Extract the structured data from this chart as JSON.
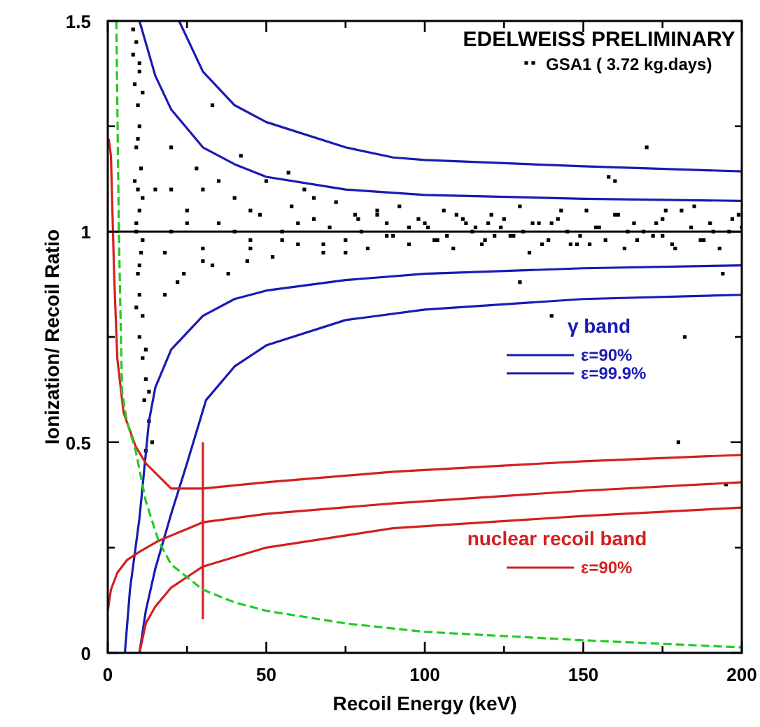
{
  "chart_data": {
    "type": "scatter",
    "title": "EDELWEISS PRELIMINARY",
    "xlabel": "Recoil Energy (keV)",
    "ylabel": "Ionization/ Recoil Ratio",
    "xlim": [
      0,
      200
    ],
    "ylim": [
      0,
      1.5
    ],
    "xticks": [
      0,
      {
        "value": 25,
        "label": null
      },
      50,
      {
        "value": 75,
        "label": null
      },
      100,
      {
        "value": 125,
        "label": null
      },
      150,
      {
        "value": 175,
        "label": null
      },
      200
    ],
    "yticks": [
      0,
      {
        "value": 0.25,
        "label": null
      },
      0.5,
      {
        "value": 0.75,
        "label": null
      },
      1,
      {
        "value": 1.25,
        "label": null
      },
      1.5
    ],
    "grid": false,
    "legend": "right",
    "ref_lines": [
      {
        "axis": "y",
        "value": 1,
        "color": "#000000"
      }
    ],
    "annotations": [
      "γ band",
      "nuclear recoil band"
    ],
    "series": [
      {
        "name": "GSA1 ( 3.72 kg.days)",
        "marker": "square",
        "color": "#000000",
        "x": [
          8,
          9,
          10,
          8.5,
          9.5,
          10,
          9,
          10.5,
          9.5,
          10,
          9,
          10.5,
          9.5,
          10,
          11,
          10,
          11,
          12,
          11.5,
          13,
          14,
          12,
          11,
          8.5,
          11,
          9,
          10,
          9.5,
          11,
          12,
          10,
          8,
          9,
          13,
          15,
          18,
          20,
          22,
          25,
          28,
          30,
          33,
          35,
          38,
          40,
          42,
          45,
          48,
          50,
          52,
          55,
          58,
          60,
          62,
          65,
          68,
          70,
          72,
          75,
          78,
          80,
          82,
          85,
          88,
          90,
          92,
          95,
          98,
          20,
          25,
          30,
          35,
          40,
          45,
          55,
          60,
          65,
          75,
          85,
          95,
          18,
          24,
          33,
          44,
          57,
          68,
          79,
          88,
          100,
          103,
          106,
          109,
          112,
          115,
          118,
          121,
          124,
          127,
          130,
          133,
          136,
          139,
          142,
          145,
          148,
          151,
          154,
          157,
          160,
          163,
          166,
          169,
          172,
          175,
          178,
          181,
          184,
          187,
          190,
          193,
          196,
          199,
          101,
          107,
          113,
          119,
          125,
          131,
          137,
          143,
          149,
          155,
          161,
          167,
          173,
          179,
          185,
          191,
          197,
          104,
          116,
          128,
          140,
          152,
          164,
          176,
          188,
          200,
          110,
          122,
          134,
          146,
          158,
          170,
          182,
          194,
          130,
          180,
          195,
          140,
          160,
          30,
          20,
          45,
          120,
          175
        ],
        "values": [
          1.48,
          1.45,
          1.4,
          1.35,
          1.3,
          1.25,
          1.2,
          1.15,
          1.1,
          1.05,
          1.0,
          0.95,
          0.9,
          0.85,
          0.8,
          0.75,
          0.7,
          0.65,
          0.6,
          0.55,
          0.5,
          0.48,
          1.33,
          1.12,
          0.98,
          0.82,
          1.38,
          1.22,
          1.08,
          0.72,
          0.92,
          1.42,
          1.02,
          0.62,
          1.1,
          0.95,
          1.2,
          0.88,
          1.05,
          1.15,
          0.93,
          1.3,
          1.02,
          0.9,
          1.08,
          1.18,
          0.96,
          1.04,
          1.12,
          0.94,
          1.0,
          1.06,
          0.97,
          1.1,
          1.03,
          0.95,
          1.01,
          1.07,
          0.98,
          1.04,
          1.0,
          0.96,
          1.05,
          1.02,
          0.99,
          1.06,
          0.97,
          1.03,
          1.1,
          1.02,
          0.96,
          1.12,
          1.0,
          1.05,
          0.98,
          1.02,
          1.08,
          0.95,
          1.04,
          1.01,
          0.85,
          0.9,
          0.92,
          0.93,
          1.14,
          0.97,
          1.03,
          0.99,
          1.02,
          0.98,
          1.05,
          0.96,
          1.03,
          1.0,
          0.97,
          1.04,
          1.01,
          0.99,
          1.06,
          0.95,
          1.02,
          0.98,
          1.03,
          1.0,
          0.97,
          1.05,
          1.01,
          0.98,
          1.04,
          0.96,
          1.02,
          1.0,
          0.99,
          1.03,
          0.97,
          1.05,
          1.01,
          0.98,
          1.02,
          0.96,
          1.0,
          1.04,
          1.01,
          0.99,
          1.02,
          0.98,
          1.03,
          1.0,
          0.97,
          1.05,
          0.99,
          1.01,
          1.04,
          0.98,
          1.02,
          0.96,
          1.06,
          1.0,
          1.03,
          0.98,
          1.01,
          0.99,
          1.02,
          0.97,
          1.0,
          1.05,
          0.98,
          1.01,
          1.04,
          0.99,
          1.02,
          0.97,
          1.13,
          1.2,
          0.75,
          0.9,
          0.88,
          0.5,
          0.4,
          0.8,
          1.12,
          1.1,
          1.0,
          0.98,
          1.02,
          0.99
        ]
      },
      {
        "name": "ε=90%",
        "type": "line",
        "color": "#1a1ab4",
        "x": [
          10,
          15,
          20,
          30,
          40,
          50,
          75,
          100,
          150,
          200
        ],
        "values": [
          1.5,
          1.37,
          1.29,
          1.2,
          1.16,
          1.13,
          1.1,
          1.087,
          1.078,
          1.073
        ]
      },
      {
        "type": "line",
        "color": "#1a1ab4",
        "x": [
          5.4,
          7,
          10,
          13,
          15,
          20,
          30,
          40,
          50,
          75,
          100,
          150,
          200
        ],
        "values": [
          0,
          0.15,
          0.32,
          0.55,
          0.63,
          0.72,
          0.8,
          0.84,
          0.86,
          0.885,
          0.9,
          0.913,
          0.92
        ]
      },
      {
        "name": "ε=99.9%",
        "type": "line",
        "color": "#1a1ab4",
        "x": [
          22.5,
          30,
          40,
          50,
          75,
          90,
          100,
          150,
          200
        ],
        "values": [
          1.5,
          1.38,
          1.3,
          1.26,
          1.2,
          1.176,
          1.17,
          1.155,
          1.143
        ]
      },
      {
        "type": "line",
        "color": "#1a1ab4",
        "x": [
          10,
          12,
          15,
          20,
          25,
          31,
          40,
          50,
          75,
          100,
          150,
          200
        ],
        "values": [
          0,
          0.1,
          0.2,
          0.33,
          0.45,
          0.6,
          0.68,
          0.73,
          0.79,
          0.815,
          0.84,
          0.85
        ]
      },
      {
        "name": "ε=90%",
        "type": "line",
        "color": "#d42020",
        "x": [
          0.3,
          1,
          2,
          3,
          5,
          8.8,
          12,
          16,
          20,
          30,
          50,
          90,
          150,
          200
        ],
        "values": [
          1.22,
          1.18,
          0.9,
          0.7,
          0.57,
          0.49,
          0.45,
          0.42,
          0.39,
          0.39,
          0.405,
          0.43,
          0.455,
          0.47
        ]
      },
      {
        "type": "line",
        "color": "#d42020",
        "x": [
          0,
          1,
          3,
          6,
          10,
          16,
          30,
          50,
          90,
          150,
          200
        ],
        "values": [
          0.1,
          0.15,
          0.19,
          0.22,
          0.24,
          0.266,
          0.31,
          0.33,
          0.355,
          0.385,
          0.405
        ]
      },
      {
        "type": "line",
        "color": "#d42020",
        "x": [
          10,
          12,
          15,
          20,
          25,
          30,
          50,
          90,
          150,
          200
        ],
        "values": [
          0,
          0.07,
          0.11,
          0.155,
          0.18,
          0.205,
          0.25,
          0.296,
          0.325,
          0.345
        ]
      },
      {
        "type": "line",
        "color": "#d42020",
        "x": [
          30,
          30
        ],
        "values": [
          0.08,
          0.5
        ]
      },
      {
        "type": "line",
        "color": "#22cc22",
        "line_style": "dashed",
        "x": [
          2.7,
          3.5,
          4.5,
          6,
          8.8,
          12,
          16,
          20,
          25,
          30,
          40,
          50,
          75,
          100,
          150,
          200
        ],
        "values": [
          1.5,
          1.0,
          0.62,
          0.55,
          0.48,
          0.36,
          0.266,
          0.21,
          0.18,
          0.15,
          0.12,
          0.1,
          0.07,
          0.05,
          0.03,
          0.013
        ]
      }
    ]
  }
}
